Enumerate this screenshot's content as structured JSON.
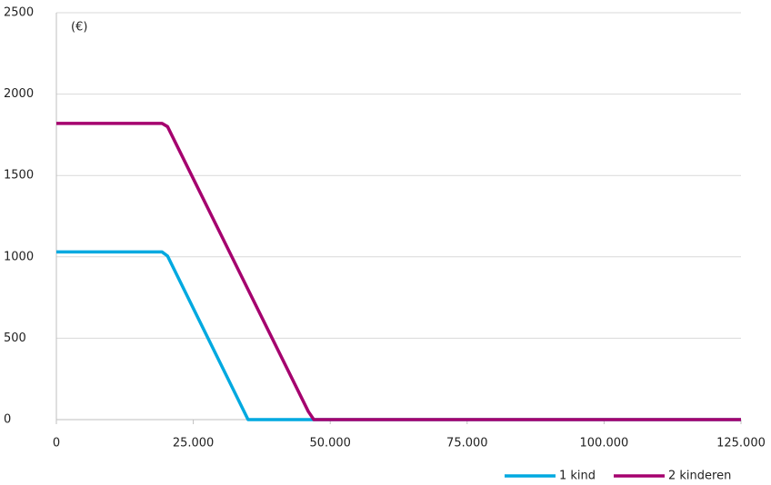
{
  "chart_data": {
    "type": "line",
    "y_label": "(€)",
    "series": [
      {
        "name": "1 kind",
        "color": "#00a9e0",
        "x": [
          0,
          19300,
          20300,
          35000,
          125000
        ],
        "values": [
          1030,
          1030,
          1005,
          0,
          0
        ]
      },
      {
        "name": "2 kinderen",
        "color": "#a5006e",
        "x": [
          0,
          19300,
          20300,
          46000,
          47000,
          125000
        ],
        "values": [
          1820,
          1820,
          1800,
          50,
          0,
          0
        ]
      }
    ],
    "xlim": [
      0,
      125000
    ],
    "xticks": [
      0,
      {
        "value": 25000,
        "label": "25.000"
      },
      {
        "value": 50000,
        "label": "50.000"
      },
      {
        "value": 75000,
        "label": "75.000"
      },
      {
        "value": 100000,
        "label": "100.000"
      },
      {
        "value": 125000,
        "label": "125.000"
      }
    ],
    "ylim": [
      0,
      2500
    ],
    "yticks": [
      0,
      500,
      1000,
      1500,
      2000,
      2500
    ],
    "grid": true,
    "legend": "bottom-right"
  }
}
